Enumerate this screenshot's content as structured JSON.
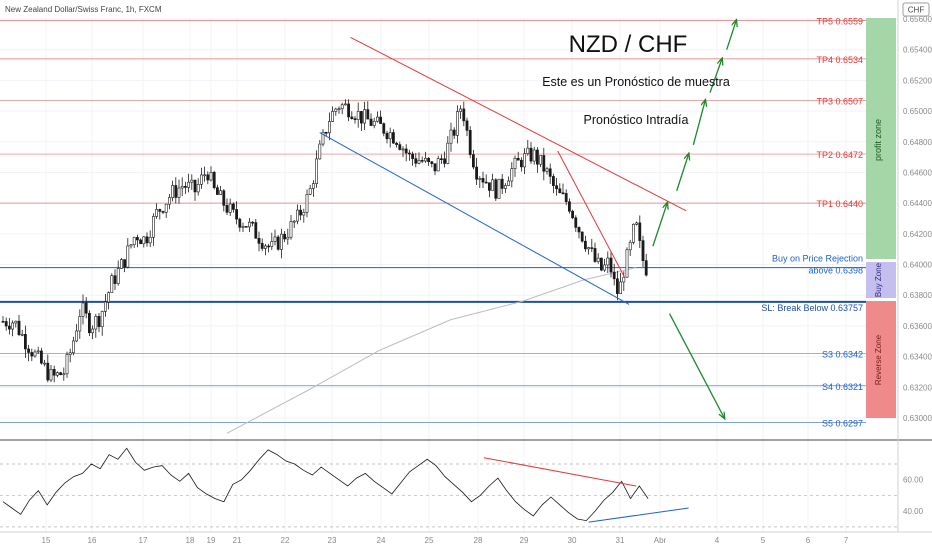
{
  "header": {
    "symbol_text": "New Zealand Dollar/Swiss Franc, 1h, FXCM",
    "currency_badge": "CHF"
  },
  "annotations": {
    "title": "NZD / CHF",
    "subtitle": "Este es un Pronóstico de muestra",
    "subtitle2": "Pronóstico Intradía",
    "zone_profit": "profit zone",
    "zone_buy": "Buy Zone",
    "zone_reverse": "Reverse Zone"
  },
  "colors": {
    "up_candle": "#ffffff",
    "down_candle": "#1a1a1a",
    "trend_red": "#e53935",
    "trend_blue": "#1e63c9",
    "arrow_green": "#1b8a2a",
    "tp_line": "#e57373",
    "support_line": "#5b86c7",
    "ma_line": "#bdbdbd",
    "profit_zone": "#a5d6a7",
    "buy_zone": "#c5bff0",
    "reverse_zone": "#ef8a8a"
  },
  "chart_data": {
    "type": "candlestick",
    "timeframe": "1h",
    "ylim": [
      0.629,
      0.6562
    ],
    "y_ticks": [
      "0.65600",
      "0.65400",
      "0.65200",
      "0.65000",
      "0.64800",
      "0.64600",
      "0.64400",
      "0.64200",
      "0.64000",
      "0.63800",
      "0.63600",
      "0.63400",
      "0.63200",
      "0.63000"
    ],
    "x_ticks": [
      "15",
      "16",
      "17",
      "18",
      "19",
      "21",
      "22",
      "23",
      "24",
      "25",
      "28",
      "29",
      "30",
      "31",
      "Abr",
      "4",
      "5",
      "6",
      "7"
    ],
    "levels": [
      {
        "label": "TP5 0.6559",
        "value": 0.6559,
        "kind": "tp"
      },
      {
        "label": "TP4 0.6534",
        "value": 0.6534,
        "kind": "tp"
      },
      {
        "label": "TP3 0.6507",
        "value": 0.6507,
        "kind": "tp"
      },
      {
        "label": "TP2 0.6472",
        "value": 0.6472,
        "kind": "tp"
      },
      {
        "label": "TP1 0.6440",
        "value": 0.644,
        "kind": "tp"
      },
      {
        "label": "Buy on Price Rejection",
        "label2": "above 0.6398",
        "value": 0.6398,
        "kind": "buy"
      },
      {
        "label": "SL: Break Below 0.63757",
        "value": 0.63757,
        "kind": "sl"
      },
      {
        "label": "S3 0.6342",
        "value": 0.6342,
        "kind": "s"
      },
      {
        "label": "S4 0.6321",
        "value": 0.6321,
        "kind": "s"
      },
      {
        "label": "S5 0.6297",
        "value": 0.6297,
        "kind": "s"
      }
    ],
    "price_path": [
      [
        14.4,
        0.6363
      ],
      [
        14.6,
        0.6352
      ],
      [
        14.9,
        0.6338
      ],
      [
        15.2,
        0.6326
      ],
      [
        15.45,
        0.633
      ],
      [
        15.6,
        0.6345
      ],
      [
        15.8,
        0.6372
      ],
      [
        16.0,
        0.636
      ],
      [
        16.2,
        0.6366
      ],
      [
        16.45,
        0.6388
      ],
      [
        16.7,
        0.6402
      ],
      [
        16.95,
        0.642
      ],
      [
        17.15,
        0.6416
      ],
      [
        17.4,
        0.6434
      ],
      [
        17.7,
        0.6446
      ],
      [
        17.95,
        0.6452
      ],
      [
        18.2,
        0.6448
      ],
      [
        18.45,
        0.6462
      ],
      [
        18.6,
        0.6448
      ],
      [
        18.85,
        0.6438
      ],
      [
        19.0,
        0.6432
      ],
      [
        19.3,
        0.6426
      ],
      [
        19.55,
        0.6418
      ],
      [
        19.8,
        0.641
      ],
      [
        20.1,
        0.642
      ],
      [
        20.35,
        0.643
      ],
      [
        20.6,
        0.6446
      ],
      [
        20.8,
        0.6472
      ],
      [
        21.0,
        0.6494
      ],
      [
        21.2,
        0.6504
      ],
      [
        21.45,
        0.6502
      ],
      [
        21.7,
        0.6496
      ],
      [
        21.95,
        0.6492
      ],
      [
        22.2,
        0.6488
      ],
      [
        22.45,
        0.6482
      ],
      [
        22.7,
        0.647
      ],
      [
        22.95,
        0.6468
      ],
      [
        23.2,
        0.6462
      ],
      [
        23.45,
        0.6472
      ],
      [
        23.65,
        0.6488
      ],
      [
        23.8,
        0.6505
      ],
      [
        23.95,
        0.648
      ],
      [
        24.1,
        0.6462
      ],
      [
        24.3,
        0.6455
      ],
      [
        24.55,
        0.6448
      ],
      [
        24.8,
        0.646
      ],
      [
        25.05,
        0.6468
      ],
      [
        25.3,
        0.6472
      ],
      [
        25.55,
        0.6462
      ],
      [
        25.8,
        0.6446
      ],
      [
        26.05,
        0.644
      ],
      [
        26.25,
        0.6424
      ],
      [
        26.45,
        0.6412
      ],
      [
        26.6,
        0.6402
      ],
      [
        26.75,
        0.6396
      ],
      [
        26.9,
        0.6402
      ],
      [
        27.0,
        0.6388
      ],
      [
        27.1,
        0.638
      ],
      [
        27.2,
        0.6396
      ],
      [
        27.35,
        0.6412
      ],
      [
        27.45,
        0.6428
      ],
      [
        27.55,
        0.641
      ],
      [
        27.65,
        0.6398
      ]
    ],
    "moving_average": [
      [
        18.8,
        0.629
      ],
      [
        20.5,
        0.6318
      ],
      [
        22.0,
        0.6344
      ],
      [
        23.5,
        0.6364
      ],
      [
        25.0,
        0.6376
      ],
      [
        26.3,
        0.639
      ],
      [
        27.4,
        0.6398
      ]
    ],
    "trendlines": [
      {
        "color": "red",
        "from": [
          21.4,
          0.6548
        ],
        "to": [
          28.45,
          0.6435
        ]
      },
      {
        "color": "red",
        "from": [
          25.75,
          0.6474
        ],
        "to": [
          27.15,
          0.6392
        ]
      },
      {
        "color": "blue",
        "from": [
          20.75,
          0.6486
        ],
        "to": [
          27.25,
          0.6374
        ]
      }
    ],
    "forecast_arrows": [
      {
        "from": [
          27.75,
          0.6412
        ],
        "to": [
          28.05,
          0.644
        ]
      },
      {
        "from": [
          28.25,
          0.6448
        ],
        "to": [
          28.5,
          0.6472
        ]
      },
      {
        "from": [
          28.6,
          0.6478
        ],
        "to": [
          28.85,
          0.6507
        ]
      },
      {
        "from": [
          28.95,
          0.6512
        ],
        "to": [
          29.2,
          0.6534
        ]
      },
      {
        "from": [
          29.3,
          0.654
        ],
        "to": [
          29.5,
          0.6559
        ]
      },
      {
        "from": [
          28.1,
          0.6368
        ],
        "to": [
          29.25,
          0.63
        ]
      }
    ],
    "rsi": {
      "ylim": [
        28,
        84
      ],
      "y_ticks": [
        "60.00",
        "40.00"
      ],
      "levels": [
        70,
        50,
        30
      ],
      "values": [
        46,
        42,
        38,
        47,
        53,
        44,
        52,
        58,
        62,
        64,
        70,
        67,
        76,
        73,
        80,
        71,
        66,
        68,
        69,
        63,
        59,
        64,
        55,
        51,
        48,
        46,
        57,
        60,
        66,
        73,
        79,
        76,
        72,
        70,
        66,
        63,
        68,
        64,
        60,
        56,
        61,
        64,
        59,
        55,
        51,
        58,
        65,
        69,
        73,
        69,
        62,
        57,
        52,
        46,
        50,
        56,
        61,
        53,
        46,
        41,
        37,
        44,
        49,
        44,
        39,
        35,
        34,
        40,
        47,
        52,
        59,
        48,
        56,
        48
      ]
    }
  }
}
